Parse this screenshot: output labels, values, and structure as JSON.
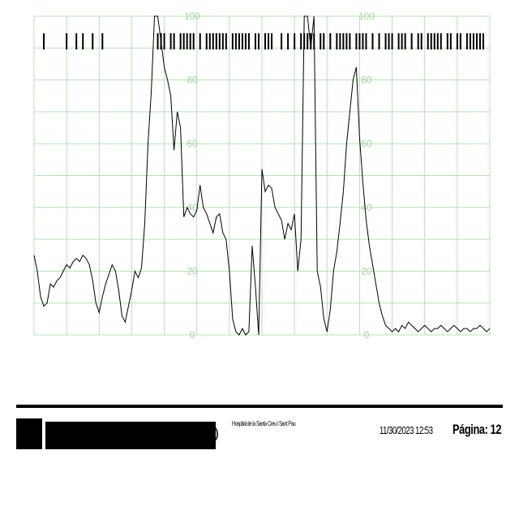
{
  "chart_data": {
    "type": "line",
    "title": "",
    "xlabel": "",
    "ylabel": "",
    "ylim": [
      0,
      100
    ],
    "grid": true,
    "y_ticks": [
      "0",
      "20",
      "40",
      "60",
      "80",
      "100"
    ],
    "x_range": [
      0,
      140
    ],
    "colors": {
      "grid": "#b6e0b6",
      "tick_label": "#9fd59f",
      "trace": "#000000"
    },
    "series": [
      {
        "x": [
          0,
          1,
          2,
          3,
          4,
          5,
          6,
          7,
          8,
          9,
          10,
          11,
          12,
          13,
          14,
          15,
          16,
          17,
          18,
          19,
          20,
          21,
          22,
          23,
          24,
          25,
          26,
          27,
          28,
          29,
          30,
          31,
          32,
          33,
          34,
          35,
          36,
          37,
          38,
          39,
          40,
          41,
          42,
          43,
          44,
          45,
          46,
          47,
          48,
          49,
          50,
          51,
          52,
          53,
          54,
          55,
          56,
          57,
          58,
          59,
          60,
          61,
          62,
          63,
          64,
          65,
          66,
          67,
          68,
          69,
          70,
          71,
          72,
          73,
          74,
          75,
          76,
          77,
          78,
          79,
          80,
          81,
          82,
          83,
          84,
          85,
          86,
          87,
          88,
          89,
          90,
          91,
          92,
          93,
          94,
          95,
          96,
          97,
          98,
          99,
          100,
          101,
          102,
          103,
          104,
          105,
          106,
          107,
          108,
          109,
          110,
          111,
          112,
          113,
          114,
          115,
          116,
          117,
          118,
          119,
          120,
          121,
          122,
          123,
          124,
          125,
          126,
          127,
          128,
          129,
          130,
          131,
          132,
          133,
          134,
          135,
          136,
          137,
          138,
          139,
          140
        ],
        "y": [
          25,
          20,
          12,
          9,
          10,
          16,
          15,
          17,
          18,
          20,
          22,
          21,
          23,
          24,
          23,
          25,
          24,
          22,
          17,
          10,
          7,
          12,
          16,
          19,
          22,
          20,
          14,
          6,
          4,
          9,
          14,
          20,
          18,
          21,
          35,
          60,
          76,
          100,
          100,
          92,
          84,
          80,
          75,
          58,
          70,
          65,
          37,
          40,
          38,
          37,
          39,
          47,
          40,
          38,
          35,
          32,
          37,
          38,
          32,
          30,
          20,
          5,
          1,
          0,
          2,
          0,
          1,
          28,
          15,
          0,
          52,
          45,
          47,
          46,
          40,
          38,
          36,
          30,
          35,
          33,
          38,
          20,
          30,
          100,
          100,
          90,
          100,
          20,
          15,
          5,
          1,
          8,
          20,
          26,
          35,
          45,
          60,
          70,
          80,
          84,
          62,
          48,
          36,
          28,
          22,
          16,
          10,
          6,
          3,
          2,
          1,
          2,
          1,
          3,
          2,
          4,
          3,
          2,
          1,
          2,
          3,
          2,
          1,
          2,
          2,
          3,
          2,
          1,
          2,
          3,
          2,
          1,
          2,
          2,
          1,
          2,
          2,
          3,
          2,
          1,
          2
        ]
      }
    ],
    "event_ticks_x": [
      3,
      10,
      13,
      15,
      18,
      21,
      38,
      39,
      40,
      42,
      43,
      45,
      46,
      47,
      48,
      49,
      51,
      53,
      54,
      55,
      56,
      57,
      58,
      59,
      61,
      62,
      63,
      64,
      65,
      66,
      68,
      69,
      71,
      72,
      73,
      76,
      78,
      80,
      82,
      83,
      84,
      85,
      86,
      88,
      89,
      91,
      93,
      94,
      95,
      96,
      97,
      99,
      100,
      101,
      102,
      104,
      106,
      108,
      109,
      110,
      112,
      113,
      114,
      116,
      118,
      119,
      121,
      122,
      123,
      124,
      125,
      127,
      128,
      130,
      131,
      133,
      134,
      135,
      136,
      137,
      138
    ]
  },
  "footer": {
    "hospital": "Hospital de la Santa Creu i Sant Pau",
    "datetime": "11/30/2023 12:53",
    "page_label": "Página:",
    "page_number": "12"
  }
}
